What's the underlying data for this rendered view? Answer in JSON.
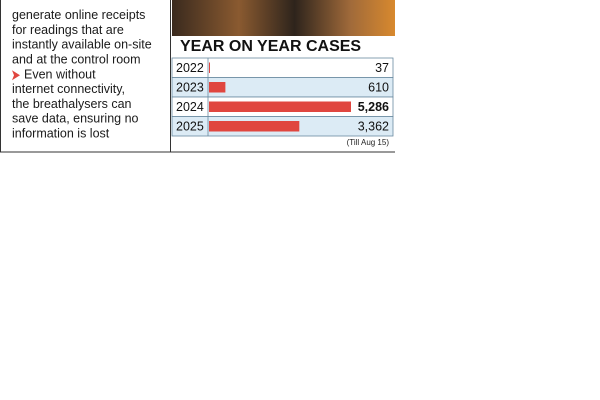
{
  "article": {
    "paragraphs": [
      [
        "generate online receipts",
        "for readings that are",
        "instantly available on-site",
        "and at the control room"
      ],
      [
        "Even without",
        "internet connectivity,",
        "the breathalysers can",
        "save data, ensuring no",
        "information is lost"
      ]
    ]
  },
  "chart_data": {
    "type": "bar",
    "title": "YEAR ON YEAR CASES",
    "categories": [
      "2022",
      "2023",
      "2024",
      "2025"
    ],
    "values": [
      37,
      610,
      5286,
      3362
    ],
    "value_labels": [
      "37",
      "610",
      "5,286",
      "3,362"
    ],
    "color": "#e0463f",
    "note": "(Till Aug 15)"
  }
}
